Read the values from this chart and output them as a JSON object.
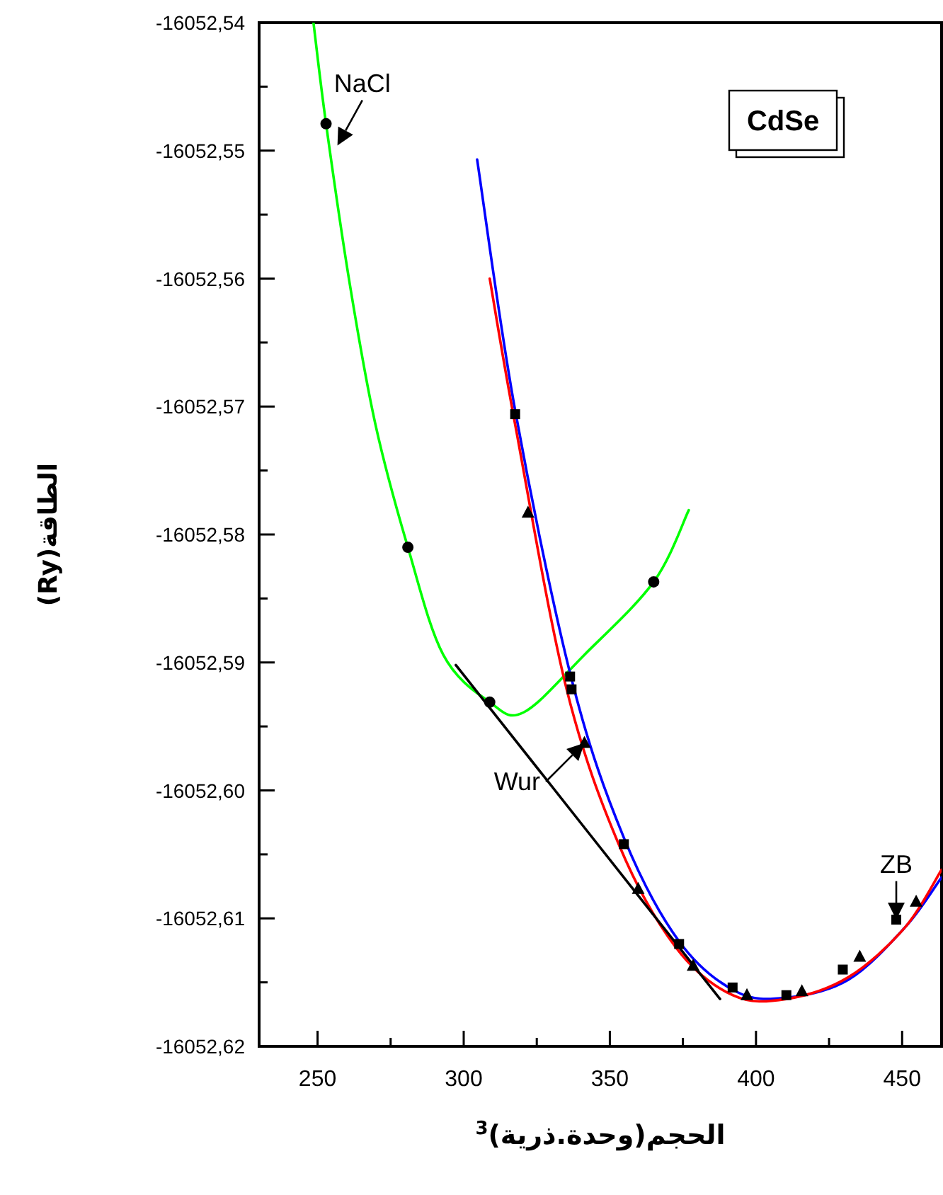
{
  "chart_data": {
    "type": "line",
    "xlabel": "الحجم(وحدة.ذرية)$^{3}$",
    "ylabel": "الطاقة(Ry)",
    "xlim": [
      230,
      463.5
    ],
    "ylim": [
      -16052.62,
      -16052.54
    ],
    "xticks": [
      250,
      {
        "value": 275,
        "label": null
      },
      300,
      {
        "value": 325,
        "label": null
      },
      350,
      {
        "value": 375,
        "label": null
      },
      400,
      {
        "value": 425,
        "label": null
      },
      450
    ],
    "yticks": [
      {
        "value": -16052.62,
        "label": "-16052,62"
      },
      {
        "value": -16052.615,
        "label": null
      },
      {
        "value": -16052.61,
        "label": "-16052,61"
      },
      {
        "value": -16052.605,
        "label": null
      },
      {
        "value": -16052.6,
        "label": "-16052,60"
      },
      {
        "value": -16052.595,
        "label": null
      },
      {
        "value": -16052.59,
        "label": "-16052,59"
      },
      {
        "value": -16052.585,
        "label": null
      },
      {
        "value": -16052.58,
        "label": "-16052,58"
      },
      {
        "value": -16052.575,
        "label": null
      },
      {
        "value": -16052.57,
        "label": "-16052,57"
      },
      {
        "value": -16052.565,
        "label": null
      },
      {
        "value": -16052.56,
        "label": "-16052,56"
      },
      {
        "value": -16052.555,
        "label": null
      },
      {
        "value": -16052.55,
        "label": "-16052,55"
      },
      {
        "value": -16052.545,
        "label": null
      },
      {
        "value": -16052.54,
        "label": "-16052,54"
      }
    ],
    "grid": false,
    "series": [
      {
        "type": "line",
        "color": "#00ff00",
        "marker": "none",
        "x": [
          248.6,
          252.9,
          261,
          269.8,
          280.9,
          293,
          308.9,
          320.5,
          341.3,
          365,
          377
        ],
        "values": [
          -16052.54,
          -16052.5479,
          -16052.5604,
          -16052.5714,
          -16052.581,
          -16052.5894,
          -16052.5931,
          -16052.5939,
          -16052.5894,
          -16052.5837,
          -16052.5781
        ]
      },
      {
        "type": "line",
        "color": "#0000ff",
        "marker": "none",
        "x": [
          304.6,
          317.6,
          336.9,
          354.8,
          373.7,
          393,
          410.4,
          431.6,
          451,
          463.5
        ],
        "values": [
          -16052.5507,
          -16052.5703,
          -16052.5913,
          -16052.6037,
          -16052.6118,
          -16052.6157,
          -16052.6162,
          -16052.6148,
          -16052.6107,
          -16052.6068
        ]
      },
      {
        "type": "line",
        "color": "#ff0000",
        "marker": "none",
        "x": [
          308.9,
          317.6,
          335,
          353.4,
          372.7,
          392,
          410.4,
          431.6,
          451,
          463.5
        ],
        "values": [
          -16052.56,
          -16052.5714,
          -16052.5919,
          -16052.6044,
          -16052.6123,
          -16052.616,
          -16052.6163,
          -16052.6146,
          -16052.6107,
          -16052.6062
        ]
      },
      {
        "type": "line",
        "color": "#000000",
        "marker": "none",
        "x": [
          297.3,
          387.7
        ],
        "values": [
          -16052.5902,
          -16052.6163
        ]
      },
      {
        "type": "scatter",
        "color": "#000000",
        "marker": "circle",
        "x": [
          252.9,
          280.9,
          308.9,
          365
        ],
        "values": [
          -16052.5479,
          -16052.581,
          -16052.5931,
          -16052.5837
        ]
      },
      {
        "type": "scatter",
        "color": "#000000",
        "marker": "square",
        "x": [
          317.6,
          336.4,
          336.9,
          354.8,
          373.7,
          392,
          410.4,
          429.7,
          448
        ],
        "values": [
          -16052.5706,
          -16052.5911,
          -16052.5921,
          -16052.6042,
          -16052.612,
          -16052.6154,
          -16052.616,
          -16052.614,
          -16052.6101
        ]
      },
      {
        "type": "scatter",
        "color": "#000000",
        "marker": "triangle",
        "x": [
          322,
          341.3,
          359.7,
          378.5,
          396.9,
          415.7,
          435.5,
          454.8
        ],
        "values": [
          -16052.5783,
          -16052.5963,
          -16052.6077,
          -16052.6137,
          -16052.616,
          -16052.6157,
          -16052.613,
          -16052.6087
        ]
      }
    ],
    "annotations": [
      "CdSe",
      {
        "text": "NaCl",
        "x": 256.8,
        "y": -16052.5496
      },
      {
        "text": "Wur",
        "x": 341.3,
        "y": -16052.5963
      },
      {
        "text": "ZB",
        "x": 448,
        "y": -16052.6101
      }
    ]
  }
}
